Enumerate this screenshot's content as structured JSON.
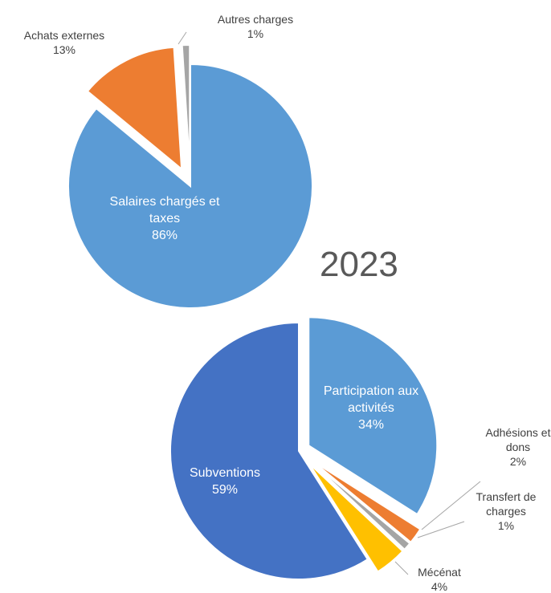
{
  "chart_data": [
    {
      "type": "pie",
      "categories": [
        "Salaires chargés et taxes",
        "Achats externes",
        "Autres charges"
      ],
      "values": [
        86,
        13,
        1
      ],
      "value_labels": [
        "86%",
        "13%",
        "1%"
      ],
      "colors": [
        "#5b9bd5",
        "#ed7d31",
        "#a5a5a5"
      ]
    },
    {
      "type": "pie",
      "title": "2023",
      "categories": [
        "Participation aux activités",
        "Adhésions et dons",
        "Transfert de charges",
        "Mécénat",
        "Subventions"
      ],
      "values": [
        34,
        2,
        1,
        4,
        59
      ],
      "value_labels": [
        "34%",
        "2%",
        "1%",
        "4%",
        "59%"
      ],
      "colors": [
        "#5b9bd5",
        "#ed7d31",
        "#a5a5a5",
        "#ffc000",
        "#4472c4"
      ]
    }
  ]
}
